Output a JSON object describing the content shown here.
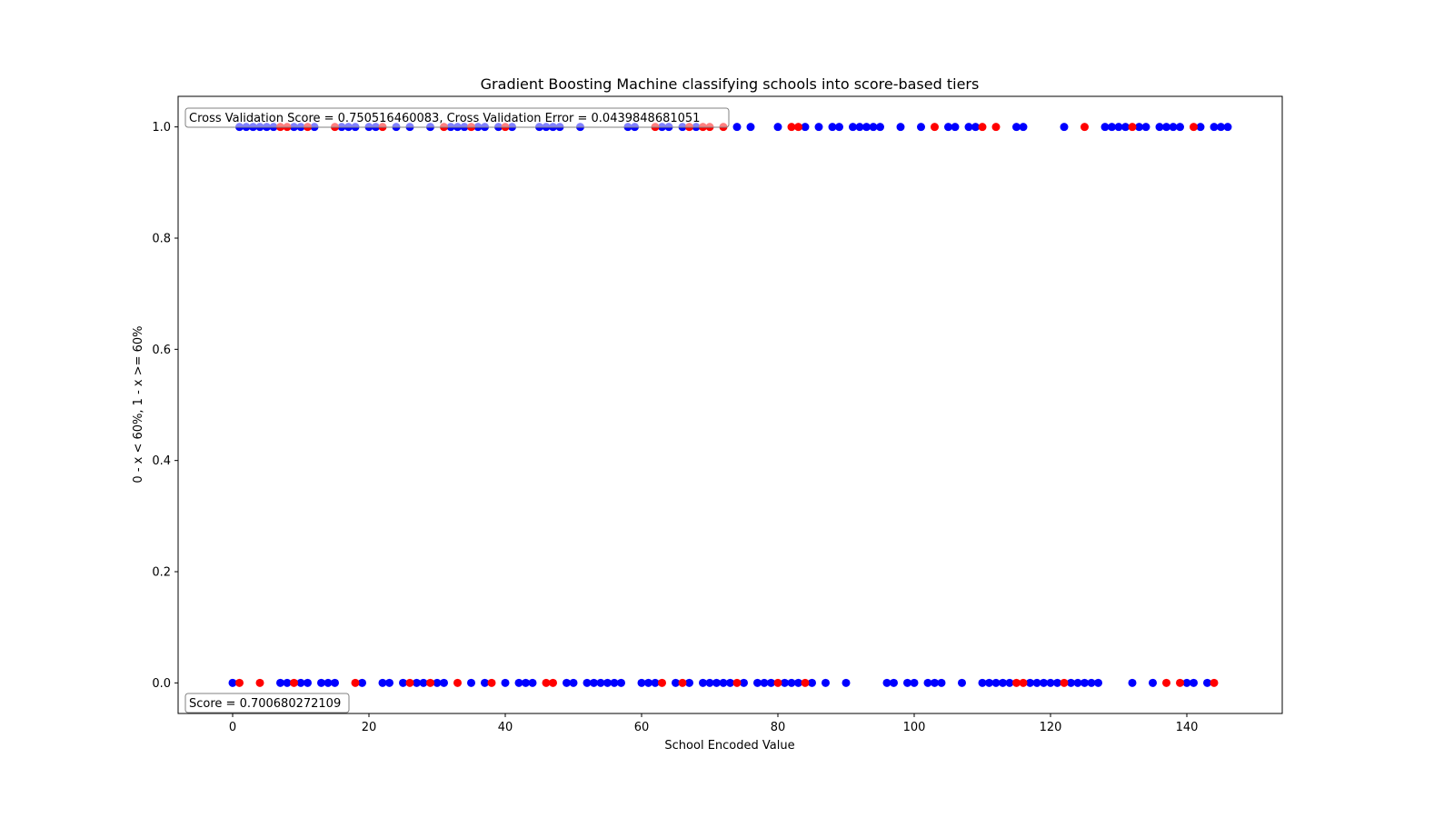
{
  "chart_data": {
    "type": "scatter",
    "title": "Gradient Boosting Machine classifying schools into score-based tiers",
    "xlabel": "School Encoded Value",
    "ylabel": "0 - x < 60%, 1 - x >= 60%",
    "xlim": [
      -8,
      154
    ],
    "ylim": [
      -0.055,
      1.055
    ],
    "xticks": [
      0,
      20,
      40,
      60,
      80,
      100,
      120,
      140
    ],
    "xtick_labels": [
      "0",
      "20",
      "40",
      "60",
      "80",
      "100",
      "120",
      "140"
    ],
    "yticks": [
      0.0,
      0.2,
      0.4,
      0.6,
      0.8,
      1.0
    ],
    "ytick_labels": [
      "0.0",
      "0.2",
      "0.4",
      "0.6",
      "0.8",
      "1.0"
    ],
    "grid": false,
    "annotations": {
      "cross_validation": "Cross Validation Score = 0.750516460083, Cross Validation Error = 0.0439848681051",
      "score": "Score = 0.700680272109"
    },
    "colors": {
      "actual": "#0000ff",
      "predicted": "#ff0000"
    },
    "series": [
      {
        "color": "#0000ff",
        "points": [
          {
            "x": 1,
            "y": 1
          },
          {
            "x": 2,
            "y": 1
          },
          {
            "x": 3,
            "y": 1
          },
          {
            "x": 4,
            "y": 1
          },
          {
            "x": 5,
            "y": 1
          },
          {
            "x": 6,
            "y": 1
          },
          {
            "x": 9,
            "y": 1
          },
          {
            "x": 10,
            "y": 1
          },
          {
            "x": 12,
            "y": 1
          },
          {
            "x": 16,
            "y": 1
          },
          {
            "x": 17,
            "y": 1
          },
          {
            "x": 18,
            "y": 1
          },
          {
            "x": 20,
            "y": 1
          },
          {
            "x": 21,
            "y": 1
          },
          {
            "x": 24,
            "y": 1
          },
          {
            "x": 26,
            "y": 1
          },
          {
            "x": 29,
            "y": 1
          },
          {
            "x": 32,
            "y": 1
          },
          {
            "x": 33,
            "y": 1
          },
          {
            "x": 34,
            "y": 1
          },
          {
            "x": 36,
            "y": 1
          },
          {
            "x": 37,
            "y": 1
          },
          {
            "x": 39,
            "y": 1
          },
          {
            "x": 41,
            "y": 1
          },
          {
            "x": 45,
            "y": 1
          },
          {
            "x": 46,
            "y": 1
          },
          {
            "x": 47,
            "y": 1
          },
          {
            "x": 48,
            "y": 1
          },
          {
            "x": 51,
            "y": 1
          },
          {
            "x": 58,
            "y": 1
          },
          {
            "x": 59,
            "y": 1
          },
          {
            "x": 63,
            "y": 1
          },
          {
            "x": 64,
            "y": 1
          },
          {
            "x": 66,
            "y": 1
          },
          {
            "x": 68,
            "y": 1
          },
          {
            "x": 74,
            "y": 1
          },
          {
            "x": 76,
            "y": 1
          },
          {
            "x": 80,
            "y": 1
          },
          {
            "x": 84,
            "y": 1
          },
          {
            "x": 86,
            "y": 1
          },
          {
            "x": 88,
            "y": 1
          },
          {
            "x": 89,
            "y": 1
          },
          {
            "x": 91,
            "y": 1
          },
          {
            "x": 92,
            "y": 1
          },
          {
            "x": 93,
            "y": 1
          },
          {
            "x": 94,
            "y": 1
          },
          {
            "x": 95,
            "y": 1
          },
          {
            "x": 98,
            "y": 1
          },
          {
            "x": 101,
            "y": 1
          },
          {
            "x": 105,
            "y": 1
          },
          {
            "x": 106,
            "y": 1
          },
          {
            "x": 108,
            "y": 1
          },
          {
            "x": 109,
            "y": 1
          },
          {
            "x": 115,
            "y": 1
          },
          {
            "x": 116,
            "y": 1
          },
          {
            "x": 122,
            "y": 1
          },
          {
            "x": 128,
            "y": 1
          },
          {
            "x": 129,
            "y": 1
          },
          {
            "x": 130,
            "y": 1
          },
          {
            "x": 131,
            "y": 1
          },
          {
            "x": 133,
            "y": 1
          },
          {
            "x": 134,
            "y": 1
          },
          {
            "x": 136,
            "y": 1
          },
          {
            "x": 137,
            "y": 1
          },
          {
            "x": 138,
            "y": 1
          },
          {
            "x": 139,
            "y": 1
          },
          {
            "x": 142,
            "y": 1
          },
          {
            "x": 144,
            "y": 1
          },
          {
            "x": 145,
            "y": 1
          },
          {
            "x": 146,
            "y": 1
          },
          {
            "x": 0,
            "y": 0
          },
          {
            "x": 7,
            "y": 0
          },
          {
            "x": 8,
            "y": 0
          },
          {
            "x": 10,
            "y": 0
          },
          {
            "x": 11,
            "y": 0
          },
          {
            "x": 13,
            "y": 0
          },
          {
            "x": 14,
            "y": 0
          },
          {
            "x": 15,
            "y": 0
          },
          {
            "x": 19,
            "y": 0
          },
          {
            "x": 22,
            "y": 0
          },
          {
            "x": 23,
            "y": 0
          },
          {
            "x": 25,
            "y": 0
          },
          {
            "x": 27,
            "y": 0
          },
          {
            "x": 28,
            "y": 0
          },
          {
            "x": 30,
            "y": 0
          },
          {
            "x": 31,
            "y": 0
          },
          {
            "x": 35,
            "y": 0
          },
          {
            "x": 37,
            "y": 0
          },
          {
            "x": 40,
            "y": 0
          },
          {
            "x": 42,
            "y": 0
          },
          {
            "x": 43,
            "y": 0
          },
          {
            "x": 44,
            "y": 0
          },
          {
            "x": 49,
            "y": 0
          },
          {
            "x": 50,
            "y": 0
          },
          {
            "x": 52,
            "y": 0
          },
          {
            "x": 53,
            "y": 0
          },
          {
            "x": 54,
            "y": 0
          },
          {
            "x": 55,
            "y": 0
          },
          {
            "x": 56,
            "y": 0
          },
          {
            "x": 57,
            "y": 0
          },
          {
            "x": 60,
            "y": 0
          },
          {
            "x": 61,
            "y": 0
          },
          {
            "x": 62,
            "y": 0
          },
          {
            "x": 65,
            "y": 0
          },
          {
            "x": 67,
            "y": 0
          },
          {
            "x": 69,
            "y": 0
          },
          {
            "x": 70,
            "y": 0
          },
          {
            "x": 71,
            "y": 0
          },
          {
            "x": 72,
            "y": 0
          },
          {
            "x": 73,
            "y": 0
          },
          {
            "x": 75,
            "y": 0
          },
          {
            "x": 77,
            "y": 0
          },
          {
            "x": 78,
            "y": 0
          },
          {
            "x": 79,
            "y": 0
          },
          {
            "x": 81,
            "y": 0
          },
          {
            "x": 82,
            "y": 0
          },
          {
            "x": 83,
            "y": 0
          },
          {
            "x": 85,
            "y": 0
          },
          {
            "x": 87,
            "y": 0
          },
          {
            "x": 90,
            "y": 0
          },
          {
            "x": 96,
            "y": 0
          },
          {
            "x": 97,
            "y": 0
          },
          {
            "x": 99,
            "y": 0
          },
          {
            "x": 100,
            "y": 0
          },
          {
            "x": 102,
            "y": 0
          },
          {
            "x": 103,
            "y": 0
          },
          {
            "x": 104,
            "y": 0
          },
          {
            "x": 107,
            "y": 0
          },
          {
            "x": 110,
            "y": 0
          },
          {
            "x": 111,
            "y": 0
          },
          {
            "x": 112,
            "y": 0
          },
          {
            "x": 113,
            "y": 0
          },
          {
            "x": 114,
            "y": 0
          },
          {
            "x": 117,
            "y": 0
          },
          {
            "x": 118,
            "y": 0
          },
          {
            "x": 119,
            "y": 0
          },
          {
            "x": 120,
            "y": 0
          },
          {
            "x": 121,
            "y": 0
          },
          {
            "x": 123,
            "y": 0
          },
          {
            "x": 124,
            "y": 0
          },
          {
            "x": 125,
            "y": 0
          },
          {
            "x": 126,
            "y": 0
          },
          {
            "x": 127,
            "y": 0
          },
          {
            "x": 132,
            "y": 0
          },
          {
            "x": 135,
            "y": 0
          },
          {
            "x": 140,
            "y": 0
          },
          {
            "x": 141,
            "y": 0
          },
          {
            "x": 143,
            "y": 0
          }
        ]
      },
      {
        "color": "#ff0000",
        "points": [
          {
            "x": 7,
            "y": 1
          },
          {
            "x": 8,
            "y": 1
          },
          {
            "x": 11,
            "y": 1
          },
          {
            "x": 15,
            "y": 1
          },
          {
            "x": 22,
            "y": 1
          },
          {
            "x": 31,
            "y": 1
          },
          {
            "x": 35,
            "y": 1
          },
          {
            "x": 40,
            "y": 1
          },
          {
            "x": 62,
            "y": 1
          },
          {
            "x": 67,
            "y": 1
          },
          {
            "x": 69,
            "y": 1
          },
          {
            "x": 70,
            "y": 1
          },
          {
            "x": 72,
            "y": 1
          },
          {
            "x": 82,
            "y": 1
          },
          {
            "x": 83,
            "y": 1
          },
          {
            "x": 103,
            "y": 1
          },
          {
            "x": 110,
            "y": 1
          },
          {
            "x": 112,
            "y": 1
          },
          {
            "x": 125,
            "y": 1
          },
          {
            "x": 132,
            "y": 1
          },
          {
            "x": 141,
            "y": 1
          },
          {
            "x": 1,
            "y": 0
          },
          {
            "x": 4,
            "y": 0
          },
          {
            "x": 9,
            "y": 0
          },
          {
            "x": 18,
            "y": 0
          },
          {
            "x": 26,
            "y": 0
          },
          {
            "x": 29,
            "y": 0
          },
          {
            "x": 33,
            "y": 0
          },
          {
            "x": 38,
            "y": 0
          },
          {
            "x": 46,
            "y": 0
          },
          {
            "x": 47,
            "y": 0
          },
          {
            "x": 63,
            "y": 0
          },
          {
            "x": 66,
            "y": 0
          },
          {
            "x": 74,
            "y": 0
          },
          {
            "x": 80,
            "y": 0
          },
          {
            "x": 84,
            "y": 0
          },
          {
            "x": 115,
            "y": 0
          },
          {
            "x": 116,
            "y": 0
          },
          {
            "x": 122,
            "y": 0
          },
          {
            "x": 137,
            "y": 0
          },
          {
            "x": 139,
            "y": 0
          },
          {
            "x": 144,
            "y": 0
          }
        ]
      }
    ]
  }
}
